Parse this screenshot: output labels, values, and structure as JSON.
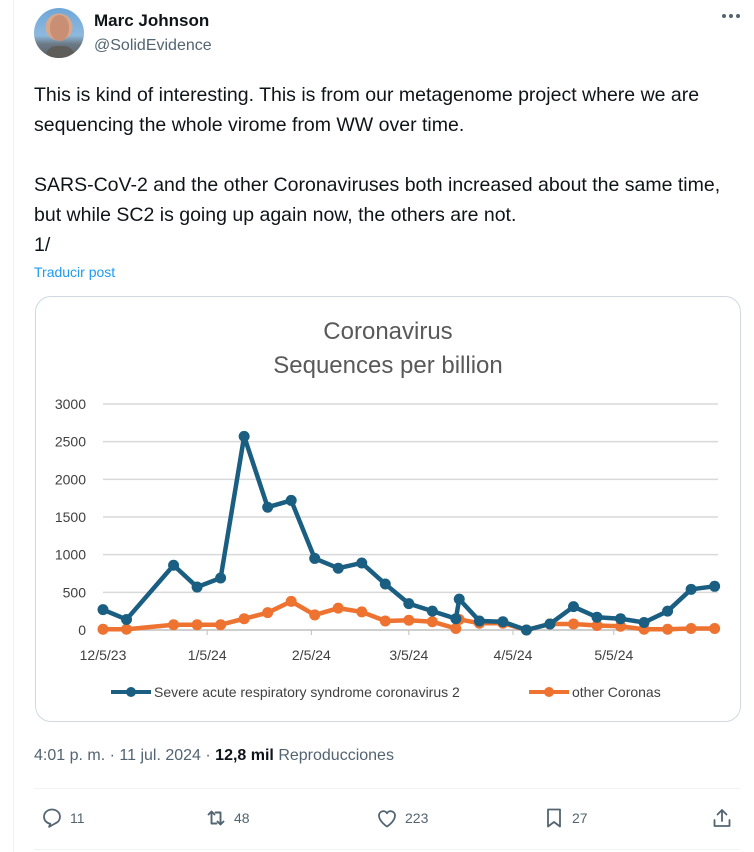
{
  "author": {
    "name": "Marc Johnson",
    "handle": "@SolidEvidence"
  },
  "tweet": {
    "text": "This is kind of interesting.  This is from our metagenome project where we are sequencing the whole virome from WW over time.\n\nSARS-CoV-2 and the other Coronaviruses both increased about the same time, but while SC2 is going up again now, the others are not.\n1/",
    "translate_label": "Traducir post"
  },
  "meta": {
    "time": "4:01 p. m.",
    "separator": "·",
    "date": "11 jul. 2024",
    "views_count": "12,8 mil",
    "views_label": "Reproducciones"
  },
  "actions": {
    "replies": "11",
    "reposts": "48",
    "likes": "223",
    "bookmarks": "27"
  },
  "icons": {
    "more": "more-horizontal-icon",
    "reply": "speech-bubble-icon",
    "repost": "repost-arrows-icon",
    "like": "heart-icon",
    "bookmark": "bookmark-icon",
    "share": "share-upload-icon"
  },
  "colors": {
    "sars_cov_2": "#1a5e82",
    "other_coronas": "#ee7230",
    "link": "#1d9bf0"
  },
  "chart_data": {
    "type": "line",
    "title": "Coronavirus",
    "subtitle": "Sequences per billion",
    "xlabel": "",
    "ylabel": "",
    "ylim": [
      0,
      3000
    ],
    "yticks": [
      "0",
      "500",
      "1000",
      "1500",
      "2000",
      "2500",
      "3000"
    ],
    "ytick_values": [
      0,
      500,
      1000,
      1500,
      2000,
      2500,
      3000
    ],
    "xticks": [
      "12/5/23",
      "1/5/24",
      "2/5/24",
      "3/5/24",
      "4/5/24",
      "5/5/24"
    ],
    "xtick_days": [
      0,
      31,
      62,
      91,
      122,
      152
    ],
    "x_unit": "days since 12/5/23",
    "xlim_days": [
      0,
      183
    ],
    "grid": true,
    "legend_position": "bottom",
    "x_days": [
      0,
      7,
      21,
      28,
      35,
      42,
      49,
      56,
      63,
      70,
      77,
      84,
      91,
      98,
      105,
      106,
      112,
      119,
      126,
      133,
      140,
      147,
      154,
      161,
      168,
      175,
      182
    ],
    "series": [
      {
        "name": "Severe acute respiratory syndrome coronavirus 2",
        "values": [
          270,
          140,
          860,
          570,
          690,
          2570,
          1630,
          1720,
          950,
          820,
          890,
          610,
          350,
          250,
          150,
          410,
          120,
          110,
          0,
          80,
          310,
          170,
          150,
          100,
          250,
          540,
          580
        ]
      },
      {
        "name": "other Coronas",
        "values": [
          10,
          10,
          70,
          70,
          70,
          150,
          230,
          380,
          200,
          290,
          240,
          120,
          130,
          110,
          20,
          140,
          90,
          90,
          0,
          80,
          80,
          60,
          50,
          10,
          10,
          20,
          20
        ]
      }
    ]
  }
}
